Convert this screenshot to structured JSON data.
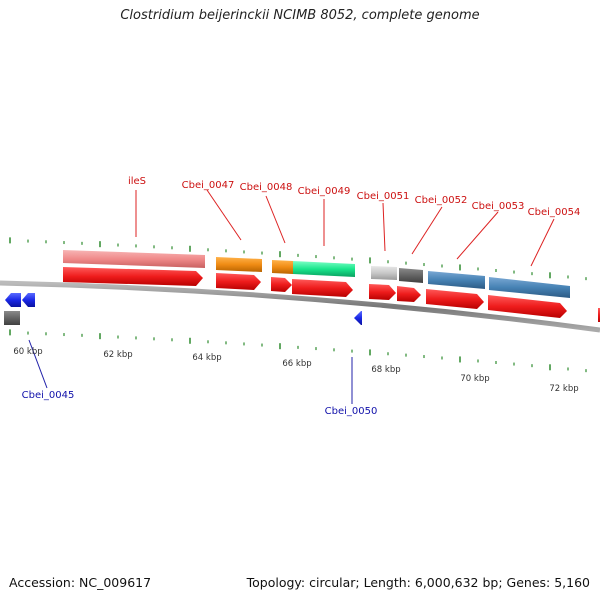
{
  "title": "Clostridium beijerinckii NCIMB 8052, complete genome",
  "footer": {
    "accession": "Accession: NC_009617",
    "summary": "Topology: circular; Length: 6,000,632 bp; Genes: 5,160"
  },
  "colors": {
    "backbone": "#888888",
    "tick": "#2e8b2e",
    "cds_forward": "#ee1c1c",
    "cds_reverse": "#1a28e6",
    "label_forward": "#cc1111",
    "label_reverse": "#1111aa"
  },
  "scale_labels": [
    "60 kbp",
    "62 kbp",
    "64 kbp",
    "66 kbp",
    "68 kbp",
    "70 kbp",
    "72 kbp"
  ],
  "gene_labels": [
    {
      "text": "ileS",
      "strand": "forward"
    },
    {
      "text": "Cbei_0047",
      "strand": "forward"
    },
    {
      "text": "Cbei_0048",
      "strand": "forward"
    },
    {
      "text": "Cbei_0049",
      "strand": "forward"
    },
    {
      "text": "Cbei_0051",
      "strand": "forward"
    },
    {
      "text": "Cbei_0052",
      "strand": "forward"
    },
    {
      "text": "Cbei_0053",
      "strand": "forward"
    },
    {
      "text": "Cbei_0054",
      "strand": "forward"
    },
    {
      "text": "Cbei_0045",
      "strand": "reverse"
    },
    {
      "text": "Cbei_0050",
      "strand": "reverse"
    }
  ],
  "cog_colors": [
    "#f08a8a",
    "#f08c14",
    "#19e68c",
    "#c8c8c8",
    "#646464",
    "#4682b4"
  ]
}
